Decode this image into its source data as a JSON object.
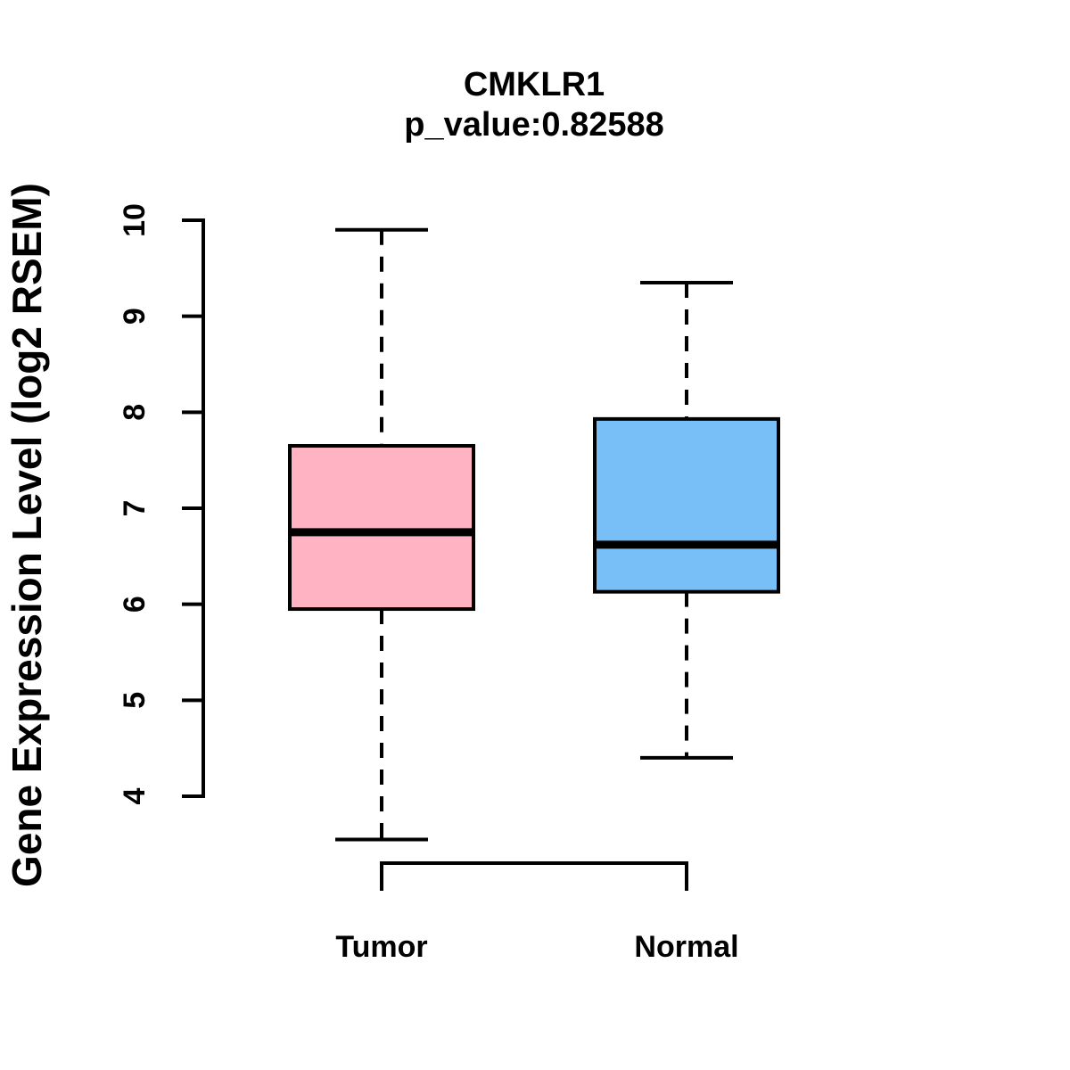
{
  "figure": {
    "title": "CMKLR1",
    "subtitle": "p_value:0.82588",
    "background_color": "#FFFFFF",
    "axis_color": "#000000"
  },
  "chart_data": {
    "type": "boxplot",
    "title": "CMKLR1",
    "subtitle": "p_value:0.82588",
    "p_value": 0.82588,
    "gene": "CMKLR1",
    "xlabel": "",
    "ylabel": "Gene Expression Level (log2 RSEM)",
    "ylim": [
      4,
      10
    ],
    "yticks": [
      4,
      5,
      6,
      7,
      8,
      9,
      10
    ],
    "grid": false,
    "legend": "none",
    "categories": [
      "Tumor",
      "Normal"
    ],
    "series": [
      {
        "name": "Tumor",
        "color": "#FFB3C3",
        "border_color": "#000000",
        "whisker_low": 3.55,
        "q1": 5.95,
        "median": 6.75,
        "q3": 7.65,
        "whisker_high": 9.9
      },
      {
        "name": "Normal",
        "color": "#79BFF7",
        "border_color": "#000000",
        "whisker_low": 4.4,
        "q1": 6.13,
        "median": 6.62,
        "q3": 7.93,
        "whisker_high": 9.35
      }
    ],
    "comparison_bracket": {
      "from": "Tumor",
      "to": "Normal"
    }
  }
}
